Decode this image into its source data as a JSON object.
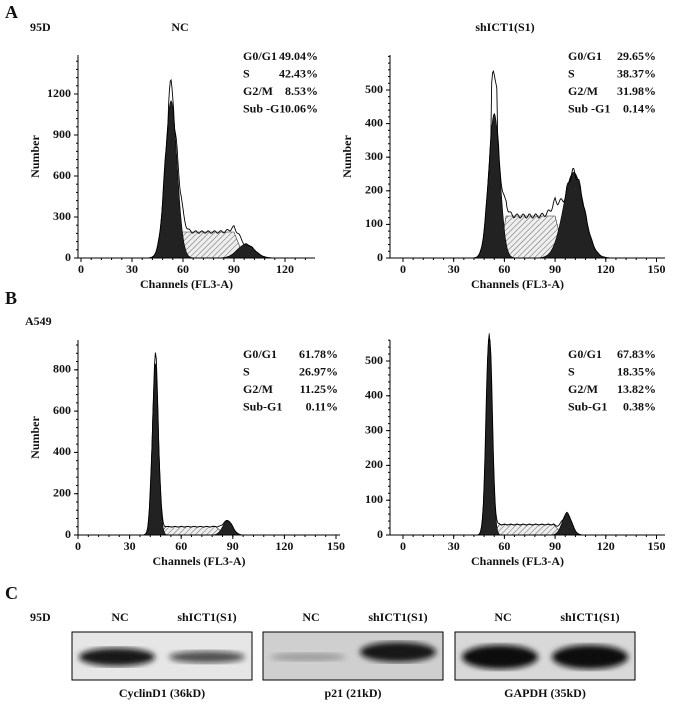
{
  "panels": [
    {
      "label": "A",
      "cell_line": "95D",
      "plots": [
        {
          "title": "NC",
          "y_label": "Number",
          "x_label": "Channels (FL3-A)",
          "yticks": [
            0,
            300,
            600,
            900,
            1200
          ],
          "xticks": [
            0,
            30,
            60,
            90,
            120
          ],
          "stats": [
            [
              "G0/G1",
              "49.04%"
            ],
            [
              "S",
              "42.43%"
            ],
            [
              "G2/M",
              "8.53%"
            ],
            [
              "Sub -G1",
              "0.06%"
            ]
          ]
        },
        {
          "title": "shICT1(S1)",
          "y_label": "Number",
          "x_label": "Channels (FL3-A)",
          "yticks": [
            0,
            100,
            200,
            300,
            400,
            500
          ],
          "xticks": [
            0,
            30,
            60,
            90,
            120,
            150
          ],
          "stats": [
            [
              "G0/G1",
              "29.65%"
            ],
            [
              "S",
              "38.37%"
            ],
            [
              "G2/M",
              "31.98%"
            ],
            [
              "Sub -G1",
              "0.14%"
            ]
          ]
        }
      ]
    },
    {
      "label": "B",
      "cell_line": "A549",
      "plots": [
        {
          "y_label": "Number",
          "x_label": "Channels (FL3-A)",
          "yticks": [
            0,
            200,
            400,
            600,
            800
          ],
          "xticks": [
            0,
            30,
            60,
            90,
            120,
            150
          ],
          "stats": [
            [
              "G0/G1",
              "61.78%"
            ],
            [
              "S",
              "26.97%"
            ],
            [
              "G2/M",
              "11.25%"
            ],
            [
              "Sub-G1",
              "0.11%"
            ]
          ]
        },
        {
          "x_label": "Channels (FL3-A)",
          "yticks": [
            0,
            100,
            200,
            300,
            400,
            500
          ],
          "xticks": [
            0,
            30,
            60,
            90,
            120,
            150
          ],
          "stats": [
            [
              "G0/G1",
              "67.83%"
            ],
            [
              "S",
              "18.35%"
            ],
            [
              "G2/M",
              "13.82%"
            ],
            [
              "Sub-G1",
              "0.38%"
            ]
          ]
        }
      ]
    }
  ],
  "blots": {
    "label": "C",
    "cell_line": "95D",
    "groups": [
      {
        "lanes": [
          "NC",
          "shICT1(S1)"
        ],
        "caption": "CyclinD1 (36kD)"
      },
      {
        "lanes": [
          "NC",
          "shICT1(S1)"
        ],
        "caption": "p21 (21kD)"
      },
      {
        "lanes": [
          "NC",
          "shICT1(S1)"
        ],
        "caption": "GAPDH (35kD)"
      }
    ]
  }
}
